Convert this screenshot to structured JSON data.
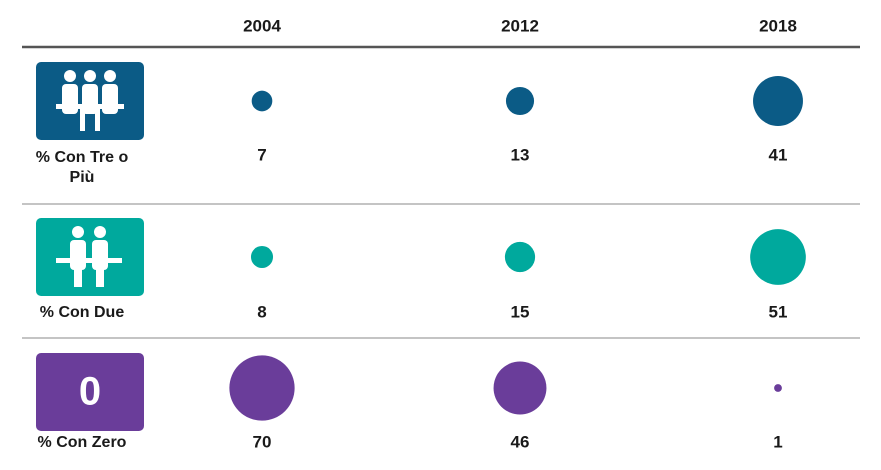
{
  "chart_data": {
    "type": "bubble",
    "categories": [
      "2004",
      "2012",
      "2018"
    ],
    "series": [
      {
        "name": "% Con Tre o Più",
        "color": "#0b5b86",
        "values": [
          7,
          13,
          41
        ]
      },
      {
        "name": "% Con Due",
        "color": "#00a99d",
        "values": [
          8,
          15,
          51
        ]
      },
      {
        "name": "% Con Zero",
        "color": "#6a3d9a",
        "values": [
          70,
          46,
          1
        ],
        "icon_text": "0"
      }
    ]
  }
}
